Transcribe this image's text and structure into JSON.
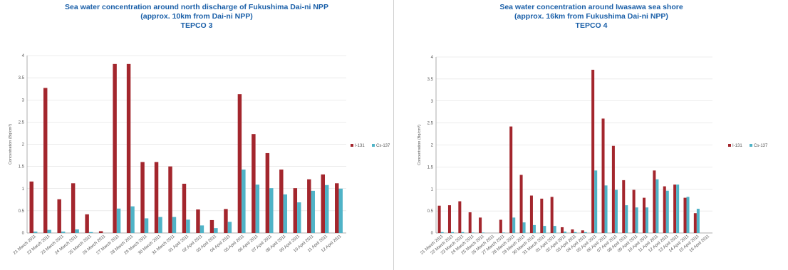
{
  "colors": {
    "i131": "#a3262d",
    "cs137": "#4fb3c7",
    "title": "#1a5fa8",
    "grid": "#d9d9d9"
  },
  "chart_data": [
    {
      "type": "bar",
      "title_lines": [
        "Sea water concentration around north discharge of Fukushima Dai-ni NPP",
        "(approx. 10km from Dai-ni NPP)",
        "TEPCO 3"
      ],
      "ylabel": "Concentration (Bq/cm³)",
      "ylim": [
        0,
        4
      ],
      "yticks": [
        "0",
        "0.5",
        "1",
        "1.5",
        "2",
        "2.5",
        "3",
        "3.5",
        "4"
      ],
      "categories": [
        "21 March 2011",
        "22 March 2011",
        "23 March 2011",
        "24 March 2011",
        "25 March 2011",
        "26 March 2011",
        "27 March 2011",
        "28 March 2011",
        "29 March 2011",
        "30 March 2011",
        "31 March 2011",
        "01 April 2011",
        "02 April 2011",
        "03 April 2011",
        "04 April 2011",
        "05 April 2011",
        "06 April 2011",
        "07 April 2011",
        "08 April 2011",
        "09 April 2011",
        "10 April 2011",
        "11 April 2011",
        "12 April 2011"
      ],
      "series": [
        {
          "name": "I-131",
          "values": [
            1.16,
            3.27,
            0.76,
            1.12,
            0.42,
            0.04,
            3.81,
            3.81,
            1.6,
            1.6,
            1.5,
            1.11,
            0.53,
            0.29,
            0.54,
            3.13,
            2.23,
            1.8,
            1.43,
            1.01,
            1.21,
            1.32,
            1.12
          ]
        },
        {
          "name": "Cs-137",
          "values": [
            0.03,
            0.07,
            0.03,
            0.08,
            0.02,
            0.0,
            0.55,
            0.6,
            0.33,
            0.36,
            0.36,
            0.3,
            0.17,
            0.11,
            0.25,
            1.43,
            1.09,
            1.01,
            0.87,
            0.69,
            0.95,
            1.08,
            1.0
          ]
        }
      ],
      "legend": "right"
    },
    {
      "type": "bar",
      "title_lines": [
        "Sea water concentration around Iwasawa sea shore",
        "(approx. 16km from Fukushima Dai-ni NPP)",
        "TEPCO 4"
      ],
      "ylabel": "Concentration (Bq/cm³)",
      "ylim": [
        0,
        4
      ],
      "yticks": [
        "0",
        "0.5",
        "1",
        "1.5",
        "2",
        "2.5",
        "3",
        "3.5",
        "4"
      ],
      "categories": [
        "21 March 2011",
        "22 March 2011",
        "23 March 2011",
        "24 March 2011",
        "25 March 2011",
        "26 March 2011",
        "27 March 2011",
        "28 March 2011",
        "29 March 2011",
        "30 March 2011",
        "31 March 2011",
        "01 April 2011",
        "02 April 2011",
        "03 April 2011",
        "04 April 2011",
        "05 April 2011",
        "06 April 2011",
        "07 April 2011",
        "08 April 2011",
        "09 April 2011",
        "10 April 2011",
        "11 April 2011",
        "12 April 2011",
        "13 April 2011",
        "14 April 2011",
        "15 April 2011",
        "16 April 2011"
      ],
      "series": [
        {
          "name": "I-131",
          "values": [
            0.62,
            0.63,
            0.72,
            0.47,
            0.35,
            0.0,
            0.3,
            2.42,
            1.32,
            0.85,
            0.78,
            0.82,
            0.13,
            0.08,
            0.06,
            3.71,
            2.6,
            1.98,
            1.2,
            0.98,
            0.8,
            1.42,
            1.06,
            1.1,
            0.8,
            0.45,
            0.0
          ]
        },
        {
          "name": "Cs-137",
          "values": [
            0.02,
            0.02,
            0.02,
            0.01,
            0.01,
            0.0,
            0.01,
            0.35,
            0.24,
            0.18,
            0.16,
            0.16,
            0.03,
            0.02,
            0.02,
            1.42,
            1.08,
            0.98,
            0.63,
            0.58,
            0.58,
            1.22,
            0.96,
            1.1,
            0.82,
            0.55,
            0.0
          ]
        }
      ],
      "legend": "right"
    }
  ]
}
